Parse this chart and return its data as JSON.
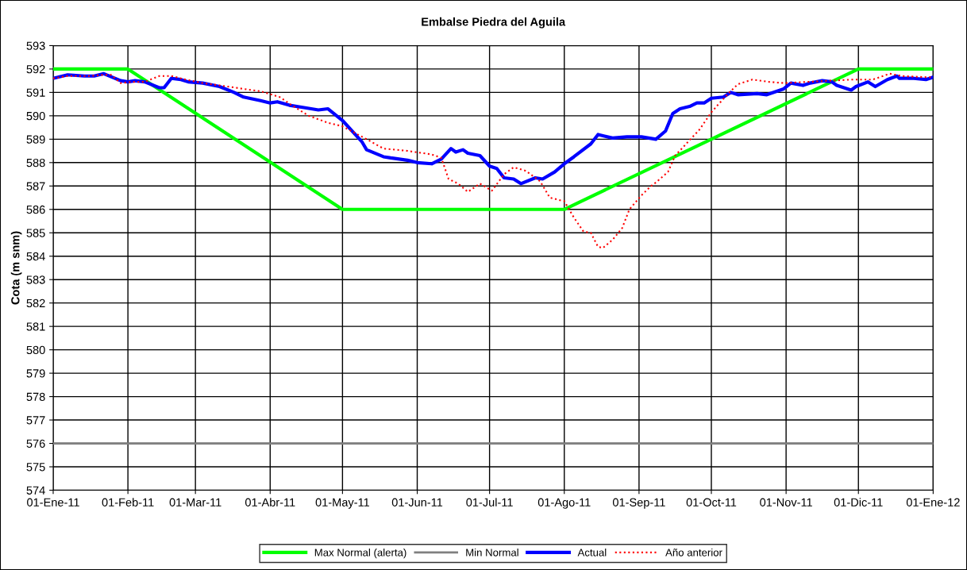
{
  "chart_data": {
    "type": "line",
    "title": "Embalse Piedra del Aguila",
    "ylabel": "Cota (m snm)",
    "xlim": [
      "2011-01-01",
      "2012-01-01"
    ],
    "xticks": [
      {
        "value": "2011-01-01",
        "label": "01-Ene-11"
      },
      {
        "value": "2011-02-01",
        "label": "01-Feb-11"
      },
      {
        "value": "2011-03-01",
        "label": "01-Mar-11"
      },
      {
        "value": "2011-04-01",
        "label": "01-Abr-11"
      },
      {
        "value": "2011-05-01",
        "label": "01-May-11"
      },
      {
        "value": "2011-06-01",
        "label": "01-Jun-11"
      },
      {
        "value": "2011-07-01",
        "label": "01-Jul-11"
      },
      {
        "value": "2011-08-01",
        "label": "01-Ago-11"
      },
      {
        "value": "2011-09-01",
        "label": "01-Sep-11"
      },
      {
        "value": "2011-10-01",
        "label": "01-Oct-11"
      },
      {
        "value": "2011-11-01",
        "label": "01-Nov-11"
      },
      {
        "value": "2011-12-01",
        "label": "01-Dic-11"
      },
      {
        "value": "2012-01-01",
        "label": "01-Ene-12"
      }
    ],
    "ylim": [
      574,
      593
    ],
    "yticks": [
      574,
      575,
      576,
      577,
      578,
      579,
      580,
      581,
      582,
      583,
      584,
      585,
      586,
      587,
      588,
      589,
      590,
      591,
      592,
      593
    ],
    "grid": true,
    "legend": "bottom",
    "marker": "none",
    "series": [
      {
        "name": "Max Normal (alerta)",
        "color": "#00ff00",
        "line_style": "solid",
        "x": [
          "2011-01-01",
          "2011-02-01",
          "2011-05-01",
          "2011-08-01",
          "2011-12-01",
          "2012-01-01"
        ],
        "values": [
          592,
          592,
          586,
          586,
          592,
          592
        ]
      },
      {
        "name": "Min Normal",
        "color": "#808080",
        "line_style": "solid",
        "x": [
          "2011-01-01",
          "2012-01-01"
        ],
        "values": [
          576,
          576
        ]
      },
      {
        "name": "Actual",
        "color": "#0000ff",
        "line_style": "solid",
        "x": [
          "2011-01-01",
          "2011-01-07",
          "2011-01-14",
          "2011-01-18",
          "2011-01-22",
          "2011-01-29",
          "2011-02-01",
          "2011-02-04",
          "2011-02-08",
          "2011-02-14",
          "2011-02-16",
          "2011-02-19",
          "2011-02-23",
          "2011-02-26",
          "2011-03-04",
          "2011-03-11",
          "2011-03-17",
          "2011-03-21",
          "2011-03-28",
          "2011-04-01",
          "2011-04-04",
          "2011-04-09",
          "2011-04-15",
          "2011-04-21",
          "2011-04-25",
          "2011-05-01",
          "2011-05-09",
          "2011-05-11",
          "2011-05-18",
          "2011-05-21",
          "2011-05-28",
          "2011-06-01",
          "2011-06-07",
          "2011-06-11",
          "2011-06-15",
          "2011-06-17",
          "2011-06-20",
          "2011-06-22",
          "2011-06-27",
          "2011-07-01",
          "2011-07-04",
          "2011-07-07",
          "2011-07-11",
          "2011-07-14",
          "2011-07-20",
          "2011-07-23",
          "2011-07-28",
          "2011-08-01",
          "2011-08-05",
          "2011-08-12",
          "2011-08-15",
          "2011-08-21",
          "2011-08-27",
          "2011-09-02",
          "2011-09-08",
          "2011-09-12",
          "2011-09-15",
          "2011-09-18",
          "2011-09-22",
          "2011-09-25",
          "2011-09-28",
          "2011-10-01",
          "2011-10-06",
          "2011-10-09",
          "2011-10-12",
          "2011-10-20",
          "2011-10-24",
          "2011-10-31",
          "2011-11-03",
          "2011-11-08",
          "2011-11-11",
          "2011-11-16",
          "2011-11-20",
          "2011-11-22",
          "2011-11-28",
          "2011-11-30",
          "2011-12-05",
          "2011-12-08",
          "2011-12-13",
          "2011-12-17",
          "2011-12-18",
          "2011-12-24",
          "2011-12-29",
          "2012-01-01"
        ],
        "values": [
          591.6,
          591.75,
          591.7,
          591.7,
          591.8,
          591.5,
          591.45,
          591.5,
          591.45,
          591.2,
          591.2,
          591.6,
          591.55,
          591.45,
          591.4,
          591.25,
          591.0,
          590.8,
          590.65,
          590.55,
          590.6,
          590.45,
          590.35,
          590.25,
          590.3,
          589.8,
          588.9,
          588.55,
          588.25,
          588.2,
          588.1,
          588.0,
          587.95,
          588.15,
          588.6,
          588.45,
          588.55,
          588.4,
          588.3,
          587.85,
          587.75,
          587.35,
          587.3,
          587.1,
          587.35,
          587.3,
          587.6,
          587.95,
          588.25,
          588.8,
          589.2,
          589.05,
          589.1,
          589.1,
          589.0,
          589.35,
          590.1,
          590.3,
          590.4,
          590.55,
          590.55,
          590.75,
          590.8,
          591.0,
          590.9,
          590.95,
          590.9,
          591.15,
          591.4,
          591.3,
          591.4,
          591.5,
          591.45,
          591.3,
          591.1,
          591.25,
          591.45,
          591.25,
          591.55,
          591.7,
          591.6,
          591.6,
          591.55,
          591.65
        ]
      },
      {
        "name": "Año anterior",
        "color": "#ff0000",
        "line_style": "dotted",
        "x": [
          "2011-01-01",
          "2011-01-07",
          "2011-01-11",
          "2011-01-16",
          "2011-01-22",
          "2011-01-25",
          "2011-01-29",
          "2011-02-03",
          "2011-02-08",
          "2011-02-14",
          "2011-02-19",
          "2011-02-25",
          "2011-03-04",
          "2011-03-11",
          "2011-03-21",
          "2011-03-28",
          "2011-04-05",
          "2011-04-10",
          "2011-04-17",
          "2011-04-25",
          "2011-05-01",
          "2011-05-11",
          "2011-05-18",
          "2011-05-28",
          "2011-06-07",
          "2011-06-11",
          "2011-06-14",
          "2011-06-18",
          "2011-06-22",
          "2011-06-27",
          "2011-07-02",
          "2011-07-07",
          "2011-07-11",
          "2011-07-16",
          "2011-07-22",
          "2011-07-26",
          "2011-08-01",
          "2011-08-05",
          "2011-08-09",
          "2011-08-12",
          "2011-08-15",
          "2011-08-17",
          "2011-08-21",
          "2011-08-25",
          "2011-08-28",
          "2011-09-02",
          "2011-09-06",
          "2011-09-08",
          "2011-09-13",
          "2011-09-16",
          "2011-09-21",
          "2011-09-26",
          "2011-10-01",
          "2011-10-04",
          "2011-10-08",
          "2011-10-12",
          "2011-10-18",
          "2011-10-25",
          "2011-10-31",
          "2011-11-10",
          "2011-11-19",
          "2011-11-29",
          "2011-12-07",
          "2011-12-14",
          "2011-12-19",
          "2011-12-29",
          "2012-01-01"
        ],
        "values": [
          591.6,
          591.7,
          591.7,
          591.7,
          591.75,
          591.75,
          591.4,
          591.45,
          591.45,
          591.7,
          591.7,
          591.55,
          591.4,
          591.3,
          591.15,
          591.05,
          590.8,
          590.45,
          590.0,
          589.7,
          589.55,
          589.0,
          588.6,
          588.5,
          588.35,
          588.2,
          587.3,
          587.1,
          586.75,
          587.1,
          586.8,
          587.5,
          587.8,
          587.65,
          587.2,
          586.5,
          586.35,
          585.65,
          585.05,
          585.0,
          584.4,
          584.35,
          584.7,
          585.2,
          586.0,
          586.6,
          587.0,
          587.15,
          587.6,
          588.3,
          588.85,
          589.4,
          590.15,
          590.5,
          590.95,
          591.35,
          591.55,
          591.45,
          591.4,
          591.45,
          591.5,
          591.55,
          591.55,
          591.8,
          591.7,
          591.65,
          591.65
        ]
      }
    ]
  }
}
